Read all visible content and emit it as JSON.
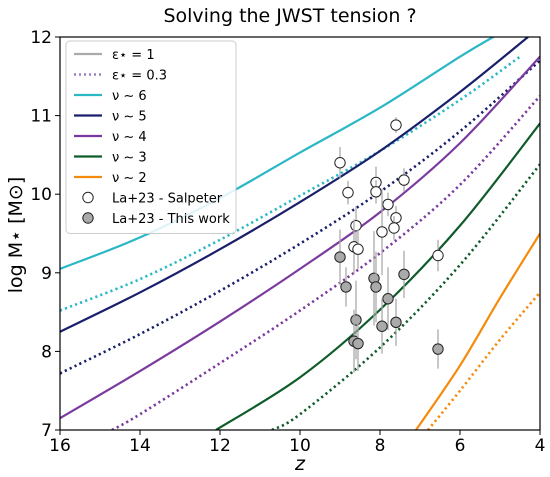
{
  "chart_data": {
    "type": "line",
    "title": "Solving the JWST tension ?",
    "xlabel": "z",
    "ylabel": "log M⋆ [M⊙]",
    "xlim": [
      16,
      4
    ],
    "ylim": [
      7,
      12
    ],
    "x_ticks": [
      16,
      14,
      12,
      10,
      8,
      6,
      4
    ],
    "y_ticks": [
      7,
      8,
      9,
      10,
      11,
      12
    ],
    "x_tick_labels": [
      "16",
      "14",
      "12",
      "10",
      "8",
      "6",
      "4"
    ],
    "y_tick_labels": [
      "7",
      "8",
      "9",
      "10",
      "11",
      "12"
    ],
    "grid": false,
    "legend_position": "top-left",
    "legend": [
      {
        "label": "ε⋆ = 1",
        "kind": "line",
        "style": "solid",
        "color": "#aaaaaa"
      },
      {
        "label": "ε⋆ = 0.3",
        "kind": "line",
        "style": "dotted",
        "color": "#9b7fc4"
      },
      {
        "label": "ν ∼ 6",
        "kind": "line",
        "style": "solid",
        "color": "#2ab7c6"
      },
      {
        "label": "ν ∼ 5",
        "kind": "line",
        "style": "solid",
        "color": "#1a1f6b"
      },
      {
        "label": "ν ∼ 4",
        "kind": "line",
        "style": "solid",
        "color": "#7b3a9e"
      },
      {
        "label": "ν ∼ 3",
        "kind": "line",
        "style": "solid",
        "color": "#0f5c2a"
      },
      {
        "label": "ν ∼ 2",
        "kind": "line",
        "style": "solid",
        "color": "#f58a0b"
      },
      {
        "label": "La+23 - Salpeter",
        "kind": "marker",
        "fill": "#ffffff"
      },
      {
        "label": "La+23 - This work",
        "kind": "marker",
        "fill": "#aaaaaa"
      }
    ],
    "series": [
      {
        "nu": 6,
        "style": "solid",
        "color": "#2ab7c6",
        "x": [
          16,
          14,
          12,
          10,
          8,
          6,
          5
        ],
        "y": [
          9.05,
          9.45,
          9.95,
          10.53,
          11.1,
          11.75,
          12.05
        ]
      },
      {
        "nu": 6,
        "style": "dotted",
        "color": "#2ab7c6",
        "x": [
          16,
          14,
          12,
          10,
          8,
          6,
          4.5
        ],
        "y": [
          8.52,
          8.92,
          9.42,
          9.98,
          10.55,
          11.2,
          11.75
        ]
      },
      {
        "nu": 5,
        "style": "solid",
        "color": "#1a1f6b",
        "x": [
          16,
          14,
          12,
          10,
          8,
          6,
          4.3
        ],
        "y": [
          8.25,
          8.75,
          9.3,
          9.9,
          10.55,
          11.3,
          12.0
        ]
      },
      {
        "nu": 5,
        "style": "dotted",
        "color": "#1a1f6b",
        "x": [
          16,
          14,
          12,
          10,
          8,
          6,
          4
        ],
        "y": [
          7.72,
          8.22,
          8.77,
          9.37,
          10.03,
          10.8,
          11.7
        ]
      },
      {
        "nu": 4,
        "style": "solid",
        "color": "#7b3a9e",
        "x": [
          16,
          14,
          12,
          10,
          8,
          6,
          4
        ],
        "y": [
          7.15,
          7.75,
          8.38,
          9.05,
          9.77,
          10.65,
          11.75
        ]
      },
      {
        "nu": 4,
        "style": "dotted",
        "color": "#7b3a9e",
        "x": [
          14.7,
          14,
          12,
          10,
          8,
          6,
          4
        ],
        "y": [
          7.0,
          7.2,
          7.85,
          8.52,
          9.25,
          10.12,
          11.25
        ]
      },
      {
        "nu": 3,
        "style": "solid",
        "color": "#0f5c2a",
        "x": [
          12.1,
          10,
          8,
          6,
          4
        ],
        "y": [
          7.0,
          7.67,
          8.53,
          9.6,
          10.9
        ]
      },
      {
        "nu": 3,
        "style": "dotted",
        "color": "#0f5c2a",
        "x": [
          10.7,
          10,
          8,
          6,
          4
        ],
        "y": [
          7.0,
          7.2,
          8.05,
          9.1,
          10.38
        ]
      },
      {
        "nu": 2,
        "style": "solid",
        "color": "#f58a0b",
        "x": [
          7.1,
          6,
          5,
          4
        ],
        "y": [
          7.0,
          7.82,
          8.68,
          9.5
        ]
      },
      {
        "nu": 2,
        "style": "dotted",
        "color": "#f58a0b",
        "x": [
          6.8,
          6,
          5,
          4
        ],
        "y": [
          7.0,
          7.5,
          8.15,
          8.75
        ]
      }
    ],
    "points_salpeter": [
      {
        "x": 9.0,
        "y": 10.4,
        "yerr": 0.2
      },
      {
        "x": 8.8,
        "y": 10.02,
        "yerr": 0.15
      },
      {
        "x": 8.1,
        "y": 10.15,
        "yerr": 0.2
      },
      {
        "x": 8.1,
        "y": 10.03,
        "yerr": 0.15
      },
      {
        "x": 7.6,
        "y": 10.88,
        "yerr": 0.1
      },
      {
        "x": 7.4,
        "y": 10.18,
        "yerr": 0.15
      },
      {
        "x": 7.8,
        "y": 9.87,
        "yerr": 0.15
      },
      {
        "x": 7.6,
        "y": 9.7,
        "yerr": 0.15
      },
      {
        "x": 7.65,
        "y": 9.57,
        "yerr": 0.15
      },
      {
        "x": 8.6,
        "y": 9.6,
        "yerr": 0.25
      },
      {
        "x": 7.95,
        "y": 9.52,
        "yerr": 0.55
      },
      {
        "x": 8.65,
        "y": 9.33,
        "yerr": 0.35
      },
      {
        "x": 8.55,
        "y": 9.3,
        "yerr": 0.25
      },
      {
        "x": 6.55,
        "y": 9.22,
        "yerr": 0.2
      }
    ],
    "points_this_work": [
      {
        "x": 9.0,
        "y": 9.2,
        "yerr": 0.35
      },
      {
        "x": 8.85,
        "y": 8.82,
        "yerr": 0.25
      },
      {
        "x": 8.15,
        "y": 8.93,
        "yerr": 0.6
      },
      {
        "x": 8.1,
        "y": 8.82,
        "yerr": 0.45
      },
      {
        "x": 7.4,
        "y": 8.98,
        "yerr": 0.3
      },
      {
        "x": 7.8,
        "y": 8.67,
        "yerr": 0.4
      },
      {
        "x": 8.6,
        "y": 8.4,
        "yerr": 0.5
      },
      {
        "x": 7.6,
        "y": 8.37,
        "yerr": 0.3
      },
      {
        "x": 7.95,
        "y": 8.32,
        "yerr": 0.35
      },
      {
        "x": 8.65,
        "y": 8.13,
        "yerr": 0.4
      },
      {
        "x": 8.55,
        "y": 8.1,
        "yerr": 0.35
      },
      {
        "x": 6.55,
        "y": 8.03,
        "yerr": 0.25
      }
    ]
  }
}
